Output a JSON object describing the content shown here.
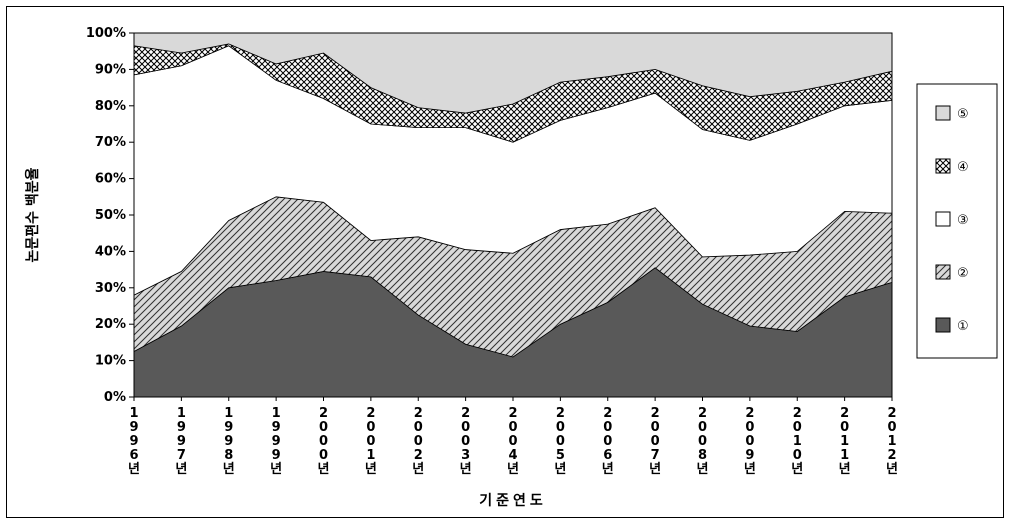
{
  "chart_data": {
    "type": "area",
    "stacked": "percent",
    "x": [
      "1996년",
      "1997년",
      "1998년",
      "1999년",
      "2000년",
      "2001년",
      "2002년",
      "2003년",
      "2004년",
      "2005년",
      "2006년",
      "2007년",
      "2008년",
      "2009년",
      "2010년",
      "2011년",
      "2012년"
    ],
    "series": [
      {
        "name": "①",
        "color": "#595959",
        "pattern": "solid",
        "values": [
          12.5,
          19.5,
          30,
          32,
          34.5,
          33,
          22.5,
          14.5,
          11,
          20,
          26,
          35.5,
          25.5,
          19.5,
          18,
          27.5,
          31.5
        ]
      },
      {
        "name": "②",
        "color": "#d9d9d9",
        "pattern": "diagonal-hatch",
        "values": [
          15.5,
          15,
          18.5,
          23,
          19,
          10,
          21.5,
          26,
          28.5,
          26,
          21.5,
          16.5,
          13,
          19.5,
          22,
          23.5,
          19
        ]
      },
      {
        "name": "③",
        "color": "#ffffff",
        "pattern": "solid",
        "values": [
          60.5,
          56.5,
          48,
          32,
          28.5,
          32,
          30,
          33.5,
          30.5,
          30,
          32,
          31.5,
          35,
          31.5,
          35,
          29,
          31
        ]
      },
      {
        "name": "④",
        "color": "#ffffff",
        "pattern": "crosshatch",
        "values": [
          8,
          3.5,
          0.5,
          4.5,
          12.5,
          10,
          5.5,
          4,
          10.5,
          10.5,
          8.5,
          6.5,
          12,
          12,
          9,
          6.5,
          8
        ]
      },
      {
        "name": "⑤",
        "color": "#d9d9d9",
        "pattern": "solid",
        "values": [
          3.5,
          5.5,
          3,
          8.5,
          5.5,
          15,
          20.5,
          22,
          19.5,
          13.5,
          12,
          10,
          14.5,
          17.5,
          16,
          13.5,
          10.5
        ]
      }
    ],
    "y_ticks": [
      "0%",
      "10%",
      "20%",
      "30%",
      "40%",
      "50%",
      "60%",
      "70%",
      "80%",
      "90%",
      "100%"
    ],
    "ylim": [
      0,
      100
    ],
    "xlabel": "기준연도",
    "ylabel": "논문편수 백분율",
    "legend_position": "right",
    "grid": false
  }
}
